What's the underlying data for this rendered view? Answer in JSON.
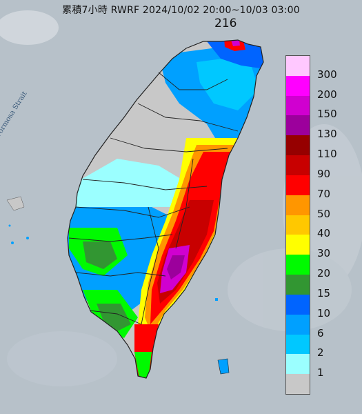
{
  "title": "累積7小時 RWRF 2024/10/02 20:00~10/03 03:00",
  "max_value_label": "216",
  "map_label_strait": "Formosa Strait",
  "legend": {
    "entries": [
      {
        "label": "300",
        "color": "#ffc8ff"
      },
      {
        "label": "200",
        "color": "#ff00ff"
      },
      {
        "label": "150",
        "color": "#d000d0"
      },
      {
        "label": "130",
        "color": "#9c009c"
      },
      {
        "label": "110",
        "color": "#960000"
      },
      {
        "label": "90",
        "color": "#c80000"
      },
      {
        "label": "70",
        "color": "#ff0000"
      },
      {
        "label": "50",
        "color": "#ff9600"
      },
      {
        "label": "40",
        "color": "#ffc800"
      },
      {
        "label": "30",
        "color": "#ffff00"
      },
      {
        "label": "20",
        "color": "#00fa00"
      },
      {
        "label": "15",
        "color": "#329632"
      },
      {
        "label": "10",
        "color": "#0064ff"
      },
      {
        "label": "6",
        "color": "#00a0ff"
      },
      {
        "label": "2",
        "color": "#00c8ff"
      },
      {
        "label": "1",
        "color": "#9bffff"
      },
      {
        "label": "",
        "color": "#c8c8c8"
      }
    ],
    "bottom_label": "1"
  },
  "colors": {
    "sea": "#b7c1c9",
    "land_no_rain": "#c8c8c8",
    "county_border": "#222222"
  }
}
